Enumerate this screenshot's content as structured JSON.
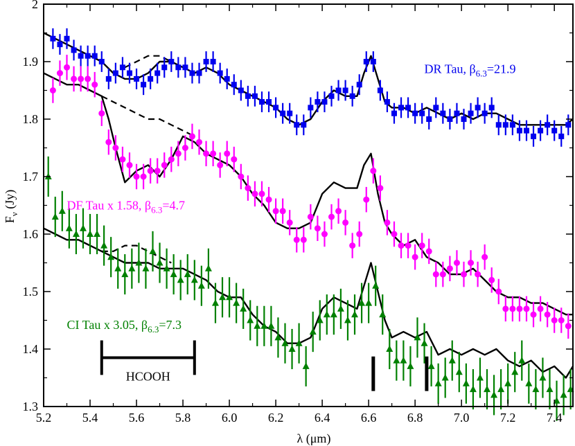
{
  "chart_data": {
    "type": "scatter",
    "xlabel_main": "λ (",
    "xlabel_unit": "μm",
    "xlabel_close": ")",
    "ylabel_main": "F",
    "ylabel_sub": "ν",
    "ylabel_rest": " (Jy)",
    "xlim": [
      5.2,
      7.48
    ],
    "ylim": [
      1.3,
      2.0
    ],
    "xticks": [
      5.2,
      5.4,
      5.6,
      5.8,
      6.0,
      6.2,
      6.4,
      6.6,
      6.8,
      7.0,
      7.2,
      7.4
    ],
    "xtick_labels": [
      "5.2",
      "5.4",
      "5.6",
      "5.8",
      "6.0",
      "6.2",
      "6.4",
      "6.6",
      "6.8",
      "7.0",
      "7.2",
      "7.4"
    ],
    "yticks": [
      1.3,
      1.4,
      1.5,
      1.6,
      1.7,
      1.8,
      1.9,
      2.0
    ],
    "ytick_labels": [
      "1.3",
      "1.4",
      "1.5",
      "1.6",
      "1.7",
      "1.8",
      "1.9",
      "2"
    ],
    "grid": false,
    "series": [
      {
        "key": "dr",
        "label_main": "DR Tau, β",
        "label_sub": "6.3",
        "label_rest": "=21.9",
        "color": "#0000ee",
        "marker": "square",
        "x": [
          5.24,
          5.27,
          5.3,
          5.33,
          5.36,
          5.39,
          5.42,
          5.45,
          5.48,
          5.51,
          5.54,
          5.57,
          5.6,
          5.63,
          5.66,
          5.69,
          5.72,
          5.75,
          5.78,
          5.81,
          5.84,
          5.87,
          5.9,
          5.93,
          5.96,
          5.99,
          6.02,
          6.05,
          6.08,
          6.11,
          6.14,
          6.17,
          6.2,
          6.23,
          6.26,
          6.29,
          6.32,
          6.35,
          6.38,
          6.41,
          6.44,
          6.47,
          6.5,
          6.53,
          6.56,
          6.59,
          6.62,
          6.65,
          6.68,
          6.71,
          6.74,
          6.77,
          6.8,
          6.83,
          6.86,
          6.89,
          6.92,
          6.95,
          6.98,
          7.01,
          7.04,
          7.07,
          7.1,
          7.13,
          7.16,
          7.19,
          7.22,
          7.25,
          7.28,
          7.31,
          7.34,
          7.37,
          7.4,
          7.43,
          7.46
        ],
        "y": [
          1.94,
          1.93,
          1.94,
          1.92,
          1.91,
          1.91,
          1.91,
          1.9,
          1.87,
          1.88,
          1.89,
          1.88,
          1.87,
          1.86,
          1.87,
          1.88,
          1.89,
          1.9,
          1.89,
          1.89,
          1.88,
          1.88,
          1.9,
          1.9,
          1.88,
          1.87,
          1.86,
          1.85,
          1.84,
          1.84,
          1.83,
          1.83,
          1.82,
          1.81,
          1.81,
          1.79,
          1.79,
          1.82,
          1.83,
          1.83,
          1.84,
          1.85,
          1.85,
          1.84,
          1.86,
          1.9,
          1.9,
          1.85,
          1.83,
          1.81,
          1.82,
          1.82,
          1.81,
          1.81,
          1.8,
          1.82,
          1.81,
          1.8,
          1.81,
          1.8,
          1.81,
          1.82,
          1.81,
          1.82,
          1.79,
          1.79,
          1.79,
          1.78,
          1.78,
          1.77,
          1.78,
          1.79,
          1.78,
          1.77,
          1.79
        ],
        "err": 0.018,
        "model_x": [
          5.2,
          5.25,
          5.3,
          5.35,
          5.4,
          5.45,
          5.5,
          5.55,
          5.6,
          5.65,
          5.7,
          5.75,
          5.8,
          5.85,
          5.9,
          5.95,
          6.0,
          6.05,
          6.1,
          6.15,
          6.2,
          6.25,
          6.3,
          6.35,
          6.4,
          6.45,
          6.5,
          6.55,
          6.58,
          6.61,
          6.64,
          6.67,
          6.7,
          6.75,
          6.8,
          6.85,
          6.9,
          6.95,
          7.0,
          7.05,
          7.1,
          7.15,
          7.2,
          7.25,
          7.3,
          7.35,
          7.4,
          7.45,
          7.48
        ],
        "model_y": [
          1.95,
          1.94,
          1.93,
          1.92,
          1.91,
          1.9,
          1.88,
          1.87,
          1.87,
          1.88,
          1.9,
          1.9,
          1.89,
          1.88,
          1.89,
          1.88,
          1.86,
          1.85,
          1.84,
          1.83,
          1.82,
          1.8,
          1.79,
          1.8,
          1.83,
          1.85,
          1.84,
          1.84,
          1.88,
          1.91,
          1.87,
          1.83,
          1.82,
          1.82,
          1.81,
          1.82,
          1.81,
          1.8,
          1.81,
          1.8,
          1.81,
          1.81,
          1.8,
          1.79,
          1.79,
          1.79,
          1.79,
          1.79,
          1.8
        ],
        "dash_x": [
          5.55,
          5.6,
          5.65,
          5.7,
          5.75
        ],
        "dash_y": [
          1.89,
          1.9,
          1.91,
          1.91,
          1.9
        ]
      },
      {
        "key": "df",
        "label_main": "DF Tau x 1.58, β",
        "label_sub": "6.3",
        "label_rest": "=4.7",
        "color": "#ff00ff",
        "marker": "circle",
        "x": [
          5.24,
          5.27,
          5.3,
          5.33,
          5.36,
          5.39,
          5.42,
          5.45,
          5.48,
          5.51,
          5.54,
          5.57,
          5.6,
          5.63,
          5.66,
          5.69,
          5.72,
          5.75,
          5.78,
          5.81,
          5.84,
          5.87,
          5.9,
          5.93,
          5.96,
          5.99,
          6.02,
          6.05,
          6.08,
          6.11,
          6.14,
          6.17,
          6.2,
          6.23,
          6.26,
          6.29,
          6.32,
          6.35,
          6.38,
          6.41,
          6.44,
          6.47,
          6.5,
          6.53,
          6.56,
          6.59,
          6.62,
          6.65,
          6.68,
          6.71,
          6.74,
          6.77,
          6.8,
          6.83,
          6.86,
          6.89,
          6.92,
          6.95,
          6.98,
          7.01,
          7.04,
          7.07,
          7.1,
          7.13,
          7.16,
          7.19,
          7.22,
          7.25,
          7.28,
          7.31,
          7.34,
          7.37,
          7.4,
          7.43,
          7.46
        ],
        "y": [
          1.85,
          1.88,
          1.89,
          1.87,
          1.87,
          1.87,
          1.86,
          1.81,
          1.76,
          1.75,
          1.73,
          1.72,
          1.7,
          1.7,
          1.71,
          1.71,
          1.72,
          1.73,
          1.74,
          1.75,
          1.77,
          1.76,
          1.74,
          1.74,
          1.72,
          1.74,
          1.73,
          1.7,
          1.68,
          1.67,
          1.67,
          1.66,
          1.64,
          1.64,
          1.62,
          1.59,
          1.59,
          1.63,
          1.61,
          1.6,
          1.63,
          1.64,
          1.62,
          1.58,
          1.6,
          1.66,
          1.71,
          1.68,
          1.62,
          1.6,
          1.58,
          1.58,
          1.56,
          1.58,
          1.57,
          1.53,
          1.53,
          1.54,
          1.55,
          1.53,
          1.55,
          1.53,
          1.56,
          1.52,
          1.5,
          1.47,
          1.47,
          1.47,
          1.47,
          1.46,
          1.47,
          1.46,
          1.45,
          1.45,
          1.44
        ],
        "err": 0.022,
        "model_x": [
          5.2,
          5.25,
          5.3,
          5.35,
          5.4,
          5.45,
          5.48,
          5.51,
          5.55,
          5.6,
          5.65,
          5.7,
          5.75,
          5.8,
          5.85,
          5.9,
          5.95,
          6.0,
          6.05,
          6.1,
          6.15,
          6.2,
          6.25,
          6.3,
          6.35,
          6.4,
          6.45,
          6.5,
          6.55,
          6.58,
          6.61,
          6.64,
          6.67,
          6.7,
          6.75,
          6.8,
          6.85,
          6.9,
          6.95,
          7.0,
          7.05,
          7.1,
          7.15,
          7.2,
          7.25,
          7.3,
          7.35,
          7.4,
          7.45,
          7.48
        ],
        "model_y": [
          1.88,
          1.87,
          1.86,
          1.86,
          1.85,
          1.84,
          1.8,
          1.75,
          1.69,
          1.71,
          1.72,
          1.7,
          1.73,
          1.77,
          1.76,
          1.74,
          1.73,
          1.72,
          1.7,
          1.67,
          1.65,
          1.62,
          1.61,
          1.61,
          1.62,
          1.67,
          1.69,
          1.68,
          1.68,
          1.72,
          1.74,
          1.67,
          1.62,
          1.6,
          1.58,
          1.59,
          1.56,
          1.55,
          1.53,
          1.53,
          1.54,
          1.52,
          1.5,
          1.49,
          1.49,
          1.48,
          1.48,
          1.47,
          1.46,
          1.46
        ],
        "dash_x": [
          5.45,
          5.5,
          5.55,
          5.6,
          5.65,
          5.7,
          5.75,
          5.8,
          5.85
        ],
        "dash_y": [
          1.84,
          1.83,
          1.82,
          1.81,
          1.8,
          1.8,
          1.79,
          1.78,
          1.77
        ]
      },
      {
        "key": "ci",
        "label_main": "CI Tau x 3.05, β",
        "label_sub": "6.3",
        "label_rest": "=7.3",
        "color": "#008000",
        "marker": "triangle",
        "x": [
          5.22,
          5.25,
          5.28,
          5.31,
          5.34,
          5.37,
          5.4,
          5.43,
          5.46,
          5.49,
          5.52,
          5.55,
          5.58,
          5.61,
          5.64,
          5.67,
          5.7,
          5.73,
          5.76,
          5.79,
          5.82,
          5.85,
          5.88,
          5.91,
          5.94,
          5.97,
          6.0,
          6.03,
          6.06,
          6.09,
          6.12,
          6.15,
          6.18,
          6.21,
          6.24,
          6.27,
          6.3,
          6.33,
          6.36,
          6.39,
          6.42,
          6.45,
          6.48,
          6.51,
          6.54,
          6.57,
          6.6,
          6.63,
          6.66,
          6.69,
          6.72,
          6.75,
          6.78,
          6.81,
          6.84,
          6.87,
          6.9,
          6.93,
          6.96,
          6.99,
          7.02,
          7.05,
          7.08,
          7.11,
          7.14,
          7.17,
          7.2,
          7.23,
          7.26,
          7.29,
          7.32,
          7.35,
          7.38,
          7.41,
          7.44,
          7.47
        ],
        "y": [
          1.7,
          1.63,
          1.64,
          1.61,
          1.6,
          1.61,
          1.6,
          1.6,
          1.58,
          1.56,
          1.54,
          1.53,
          1.54,
          1.55,
          1.54,
          1.57,
          1.55,
          1.54,
          1.53,
          1.52,
          1.53,
          1.52,
          1.51,
          1.54,
          1.48,
          1.49,
          1.49,
          1.48,
          1.47,
          1.45,
          1.44,
          1.44,
          1.44,
          1.42,
          1.41,
          1.4,
          1.41,
          1.37,
          1.43,
          1.45,
          1.46,
          1.46,
          1.47,
          1.45,
          1.46,
          1.48,
          1.48,
          1.51,
          1.46,
          1.4,
          1.38,
          1.38,
          1.37,
          1.42,
          1.41,
          1.37,
          1.34,
          1.35,
          1.38,
          1.36,
          1.34,
          1.33,
          1.35,
          1.33,
          1.32,
          1.33,
          1.34,
          1.36,
          1.38,
          1.34,
          1.33,
          1.35,
          1.33,
          1.31,
          1.32,
          1.33
        ],
        "err": 0.035,
        "model_x": [
          5.2,
          5.25,
          5.3,
          5.35,
          5.4,
          5.45,
          5.5,
          5.55,
          5.6,
          5.65,
          5.7,
          5.75,
          5.8,
          5.85,
          5.9,
          5.95,
          6.0,
          6.05,
          6.1,
          6.15,
          6.2,
          6.25,
          6.3,
          6.35,
          6.4,
          6.45,
          6.5,
          6.55,
          6.58,
          6.61,
          6.64,
          6.67,
          6.7,
          6.75,
          6.8,
          6.85,
          6.9,
          6.95,
          7.0,
          7.05,
          7.1,
          7.15,
          7.2,
          7.25,
          7.3,
          7.35,
          7.4,
          7.45,
          7.48
        ],
        "model_y": [
          1.61,
          1.6,
          1.59,
          1.59,
          1.58,
          1.57,
          1.56,
          1.55,
          1.55,
          1.55,
          1.54,
          1.54,
          1.54,
          1.53,
          1.52,
          1.5,
          1.49,
          1.49,
          1.46,
          1.44,
          1.43,
          1.41,
          1.41,
          1.42,
          1.47,
          1.49,
          1.48,
          1.47,
          1.51,
          1.55,
          1.5,
          1.45,
          1.42,
          1.43,
          1.42,
          1.43,
          1.39,
          1.4,
          1.39,
          1.4,
          1.39,
          1.4,
          1.38,
          1.37,
          1.38,
          1.36,
          1.37,
          1.35,
          1.37
        ],
        "dash_x": [
          5.45,
          5.5,
          5.55,
          5.6,
          5.65,
          5.7,
          5.75
        ],
        "dash_y": [
          1.57,
          1.57,
          1.58,
          1.58,
          1.57,
          1.56,
          1.55
        ]
      }
    ],
    "annotations": {
      "hcooh_label": "HCOOH",
      "hcooh_range": [
        5.45,
        5.85
      ],
      "hcooh_y": 1.385,
      "hcooh_cap_halfheight": 0.03,
      "feature_markers": [
        {
          "x": 6.62,
          "y_low": 1.327,
          "y_high": 1.387
        },
        {
          "x": 6.85,
          "y_low": 1.327,
          "y_high": 1.387
        }
      ],
      "label_positions": {
        "dr": {
          "x": 6.84,
          "y": 1.88
        },
        "df": {
          "x": 5.3,
          "y": 1.643
        },
        "ci": {
          "x": 5.3,
          "y": 1.435
        }
      }
    }
  }
}
